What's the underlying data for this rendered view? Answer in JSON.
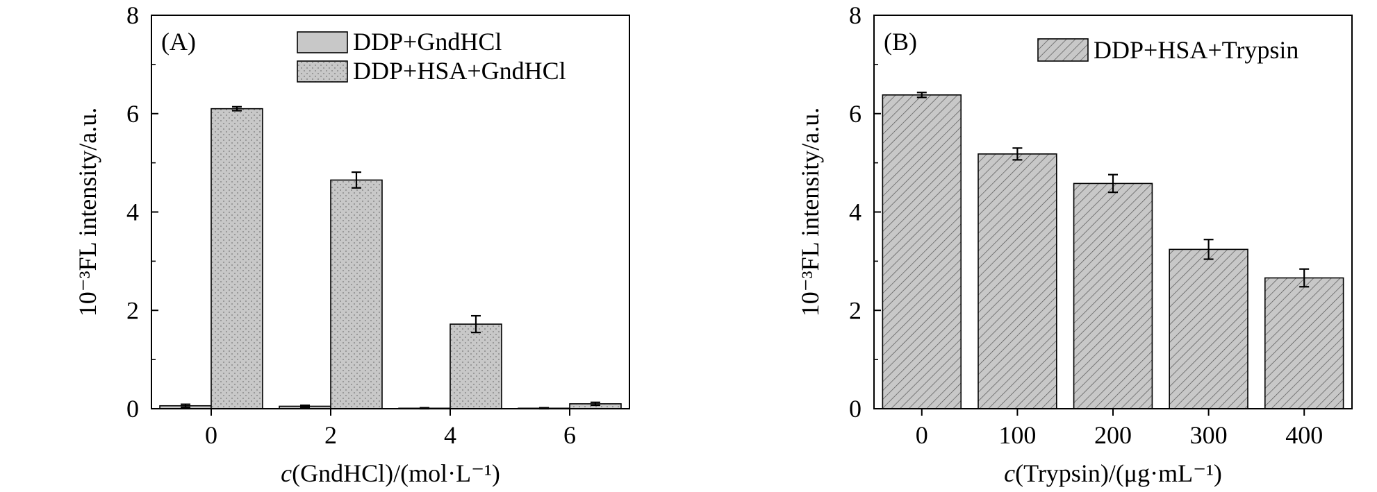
{
  "chart_data": [
    {
      "type": "bar",
      "panel_label": "(A)",
      "xlabel_italic": "c",
      "xlabel_rest": "(GndHCl)/(mol·L⁻¹)",
      "ylabel": "10⁻³FL intensity/a.u.",
      "categories": [
        "0",
        "2",
        "4",
        "6"
      ],
      "ylim": [
        0,
        8
      ],
      "yticks": [
        "0",
        "2",
        "4",
        "6",
        "8"
      ],
      "legend_position": "top-right",
      "series": [
        {
          "name": "DDP+GndHCl",
          "values": [
            0.06,
            0.05,
            0.01,
            0.01
          ],
          "errors": [
            0.03,
            0.02,
            0.01,
            0.01
          ],
          "color": "#c8c8c8",
          "pattern": "solid"
        },
        {
          "name": "DDP+HSA+GndHCl",
          "values": [
            6.1,
            4.65,
            1.72,
            0.1
          ],
          "errors": [
            0.04,
            0.16,
            0.17,
            0.03
          ],
          "color": "#c8c8c8",
          "pattern": "dots"
        }
      ]
    },
    {
      "type": "bar",
      "panel_label": "(B)",
      "xlabel_italic": "c",
      "xlabel_rest": "(Trypsin)/(μg·mL⁻¹)",
      "ylabel": "10⁻³FL intensity/a.u.",
      "categories": [
        "0",
        "100",
        "200",
        "300",
        "400"
      ],
      "ylim": [
        0,
        8
      ],
      "yticks": [
        "0",
        "2",
        "4",
        "6",
        "8"
      ],
      "legend_position": "top-right",
      "series": [
        {
          "name": "DDP+HSA+Trypsin",
          "values": [
            6.38,
            5.18,
            4.58,
            3.24,
            2.66
          ],
          "errors": [
            0.05,
            0.12,
            0.18,
            0.2,
            0.18
          ],
          "color": "#c8c8c8",
          "pattern": "hatch"
        }
      ]
    }
  ]
}
